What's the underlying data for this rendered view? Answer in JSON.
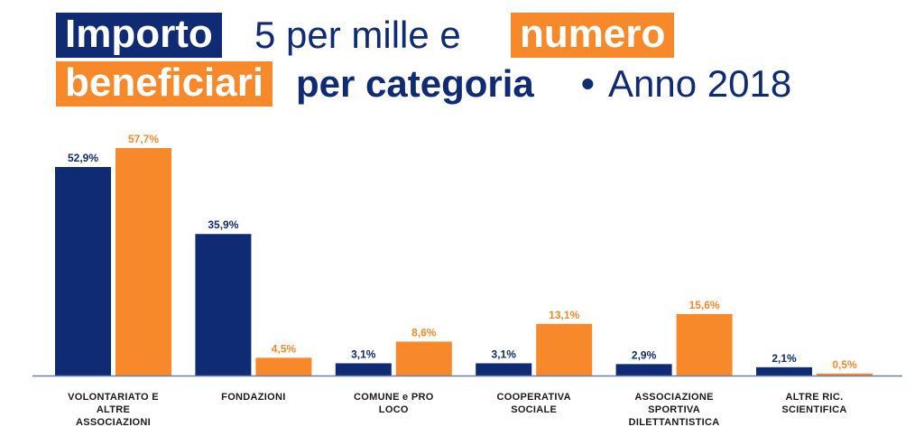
{
  "colors": {
    "navy": "#0e2b74",
    "orange": "#f7892a",
    "baseline": "#6a7fb0"
  },
  "title": {
    "part1": "Importo",
    "part2": "5 per mille e",
    "part3": "numero",
    "part4": "beneficiari",
    "part5": "per categoria",
    "part6": "•",
    "part7": "Anno 2018"
  },
  "chart_data": {
    "type": "bar",
    "categories": [
      [
        "VOLONTARIATO E",
        "ALTRE",
        "ASSOCIAZIONI"
      ],
      [
        "FONDAZIONI"
      ],
      [
        "COMUNE e PRO",
        "LOCO"
      ],
      [
        "COOPERATIVA",
        "SOCIALE"
      ],
      [
        "ASSOCIAZIONE",
        "SPORTIVA",
        "DILETTANTISTICA"
      ],
      [
        "ALTRE RIC.",
        "SCIENTIFICA"
      ]
    ],
    "series": [
      {
        "color": "#0e2b74",
        "values": [
          52.9,
          35.9,
          3.1,
          3.1,
          2.9,
          2.1
        ],
        "labels": [
          "52,9%",
          "35,9%",
          "3,1%",
          "3,1%",
          "2,9%",
          "2,1%"
        ]
      },
      {
        "color": "#f7892a",
        "values": [
          57.7,
          4.5,
          8.6,
          13.1,
          15.6,
          0.5
        ],
        "labels": [
          "57,7%",
          "4,5%",
          "8,6%",
          "13,1%",
          "15,6%",
          "0,5%"
        ]
      }
    ],
    "ylim": [
      0,
      60
    ],
    "grid": false,
    "legend": "none"
  }
}
